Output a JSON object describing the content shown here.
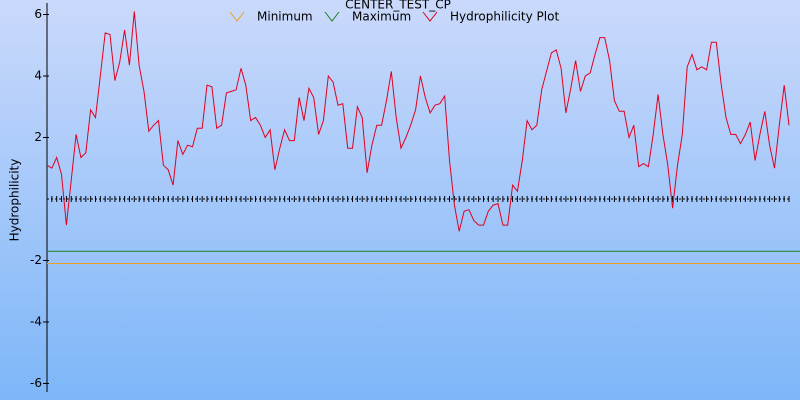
{
  "chart_data": {
    "type": "line",
    "title": "CENTER_TEST_CP",
    "y_label": "Hydrophilicity",
    "ylim": [
      -6.2,
      6.4
    ],
    "yticks": [
      -6,
      -4,
      -2,
      2,
      4,
      6
    ],
    "series": [
      {
        "name": "Minimum",
        "color": "#f0a020",
        "value": -2.1
      },
      {
        "name": "Maximum",
        "color": "#208020",
        "value": -1.7
      },
      {
        "name": "Hydrophilicity Plot",
        "color": "#e00020",
        "values": [
          1.1,
          1.0,
          1.35,
          0.8,
          -0.85,
          0.6,
          2.1,
          1.35,
          1.5,
          2.9,
          2.65,
          4.0,
          5.4,
          5.35,
          3.85,
          4.45,
          5.5,
          4.35,
          6.1,
          4.35,
          3.5,
          2.2,
          2.4,
          2.55,
          1.1,
          0.95,
          0.45,
          1.9,
          1.45,
          1.75,
          1.7,
          2.3,
          2.3,
          3.7,
          3.65,
          2.3,
          2.4,
          3.45,
          3.5,
          3.55,
          4.25,
          3.7,
          2.55,
          2.65,
          2.4,
          2.0,
          2.25,
          0.95,
          1.65,
          2.25,
          1.9,
          1.9,
          3.3,
          2.55,
          3.6,
          3.3,
          2.1,
          2.55,
          4.0,
          3.8,
          3.05,
          3.1,
          1.65,
          1.65,
          3.0,
          2.65,
          0.85,
          1.75,
          2.4,
          2.4,
          3.2,
          4.15,
          2.65,
          1.65,
          2.0,
          2.4,
          2.9,
          4.0,
          3.3,
          2.8,
          3.05,
          3.1,
          3.35,
          1.25,
          -0.2,
          -1.05,
          -0.4,
          -0.35,
          -0.7,
          -0.85,
          -0.85,
          -0.4,
          -0.2,
          -0.15,
          -0.85,
          -0.85,
          0.45,
          0.25,
          1.25,
          2.55,
          2.25,
          2.4,
          3.55,
          4.15,
          4.75,
          4.85,
          4.25,
          2.8,
          3.6,
          4.5,
          3.5,
          4.0,
          4.1,
          4.7,
          5.25,
          5.25,
          4.5,
          3.2,
          2.85,
          2.85,
          2.0,
          2.4,
          1.05,
          1.15,
          1.05,
          2.1,
          3.4,
          2.1,
          1.1,
          -0.3,
          1.1,
          2.1,
          4.3,
          4.7,
          4.2,
          4.3,
          4.2,
          5.1,
          5.1,
          3.75,
          2.65,
          2.1,
          2.1,
          1.8,
          2.1,
          2.5,
          1.25,
          2.1,
          2.85,
          1.75,
          1.0,
          2.4,
          3.7,
          2.4
        ]
      }
    ]
  }
}
